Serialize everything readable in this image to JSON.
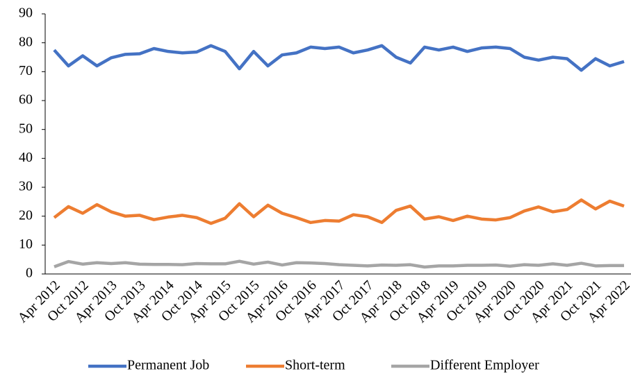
{
  "chart_data": {
    "type": "line",
    "categories": [
      "Apr 2012",
      null,
      "Oct 2012",
      null,
      "Apr 2013",
      null,
      "Oct 2013",
      null,
      "Apr 2014",
      null,
      "Oct 2014",
      null,
      "Apr 2015",
      null,
      "Oct 2015",
      null,
      "Apr 2016",
      null,
      "Oct 2016",
      null,
      "Apr 2017",
      null,
      "Oct 2017",
      null,
      "Apr 2018",
      null,
      "Oct 2018",
      null,
      "Apr 2019",
      null,
      "Oct 2019",
      null,
      "Apr 2020",
      null,
      "Oct 2020",
      null,
      "Apr 2021",
      null,
      "Oct 2021",
      null,
      "Apr 2022"
    ],
    "series": [
      {
        "name": "Permanent Job",
        "color": "#4472c4",
        "values": [
          77.5,
          72,
          75.5,
          72,
          74.8,
          76,
          76.2,
          78,
          77,
          76.5,
          76.8,
          79,
          77,
          71,
          77,
          72,
          75.8,
          76.5,
          78.5,
          78,
          78.5,
          76.5,
          77.5,
          79,
          75,
          73,
          78.5,
          77.5,
          78.5,
          77,
          78.2,
          78.5,
          78,
          75,
          74,
          75,
          74.5,
          70.5,
          74.5,
          72,
          73.5
        ]
      },
      {
        "name": "Short-term",
        "color": "#ed7d31",
        "values": [
          19.5,
          23.3,
          21,
          24,
          21.5,
          20,
          20.3,
          18.8,
          19.7,
          20.3,
          19.5,
          17.5,
          19.3,
          24.3,
          19.8,
          23.8,
          21,
          19.5,
          17.8,
          18.5,
          18.3,
          20.5,
          19.8,
          17.8,
          22,
          23.5,
          19,
          19.8,
          18.5,
          20,
          19,
          18.7,
          19.5,
          21.8,
          23.2,
          21.5,
          22.3,
          25.6,
          22.5,
          25.2,
          23.5
        ]
      },
      {
        "name": "Different Employer",
        "color": "#a5a5a5",
        "values": [
          2.5,
          4.3,
          3.4,
          3.9,
          3.6,
          3.9,
          3.4,
          3.3,
          3.3,
          3.2,
          3.6,
          3.5,
          3.5,
          4.4,
          3.4,
          4.1,
          3.1,
          3.9,
          3.8,
          3.6,
          3.2,
          3.0,
          2.8,
          3.1,
          3.0,
          3.2,
          2.4,
          2.8,
          2.8,
          3.0,
          3.0,
          3.1,
          2.7,
          3.2,
          3.0,
          3.5,
          3.0,
          3.7,
          2.8,
          2.9,
          2.9
        ]
      }
    ],
    "ylim": [
      0,
      90
    ],
    "yticks": [
      0,
      10,
      20,
      30,
      40,
      50,
      60,
      70,
      80,
      90
    ],
    "grid": false,
    "legend": "bottom"
  }
}
